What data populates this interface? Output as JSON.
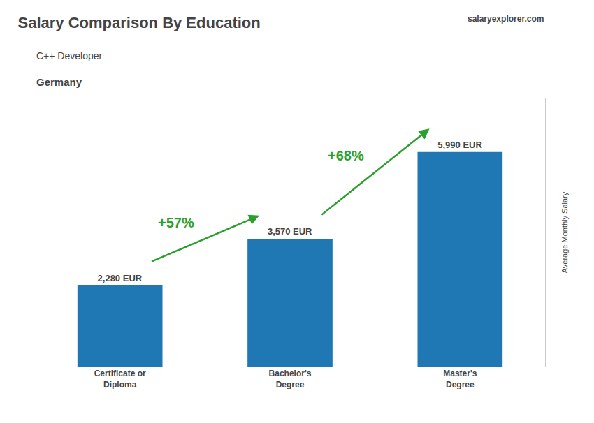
{
  "chart_data": {
    "type": "bar",
    "title": "Salary Comparison By Education",
    "subtitle": [
      "C++ Developer",
      "Germany"
    ],
    "branding": [
      "salary",
      "explorer.com"
    ],
    "ylabel": "Average Monthly Salary",
    "categories": [
      "Certificate or\nDiploma",
      "Bachelor's\nDegree",
      "Master's\nDegree"
    ],
    "values": [
      2280,
      3570,
      5990
    ],
    "value_labels": [
      "2,280 EUR",
      "3,570 EUR",
      "5,990 EUR"
    ],
    "data_labels": true,
    "annotations": [
      "+57%",
      "+68%"
    ],
    "ylim": [
      0,
      7500
    ],
    "tick_labels": "x",
    "grid": false
  }
}
